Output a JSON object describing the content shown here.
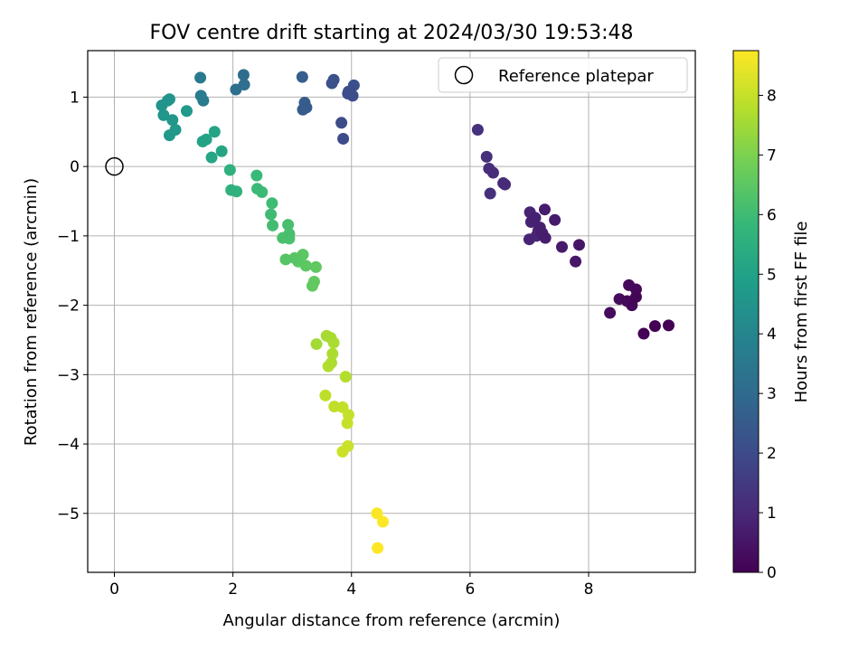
{
  "chart_data": {
    "type": "scatter",
    "title": "FOV centre drift starting at 2024/03/30 19:53:48",
    "xlabel": "Angular distance from reference (arcmin)",
    "ylabel": "Rotation from reference (arcmin)",
    "xlim": [
      -0.45,
      9.8
    ],
    "ylim": [
      -5.85,
      1.67
    ],
    "xticks": [
      0,
      2,
      4,
      6,
      8
    ],
    "yticks": [
      -5,
      -4,
      -3,
      -2,
      -1,
      0,
      1
    ],
    "grid": true,
    "legend": {
      "placement": "top-right",
      "entries": [
        "Reference platepar"
      ]
    },
    "colorbar": {
      "label": "Hours from first FF file",
      "range": [
        0,
        8.75
      ],
      "ticks": [
        0,
        1,
        2,
        3,
        4,
        5,
        6,
        7,
        8
      ],
      "colormap": "viridis"
    },
    "reference_point": {
      "x": 0,
      "y": 0
    },
    "colormap_stops": [
      "#440154",
      "#482878",
      "#3e4989",
      "#31688e",
      "#26828e",
      "#1f9e89",
      "#35b779",
      "#6ece58",
      "#b5de2b",
      "#fde725"
    ],
    "series": [
      {
        "points": [
          {
            "x": 9.35,
            "y": -2.29,
            "t": 0.0
          },
          {
            "x": 9.12,
            "y": -2.3,
            "t": 0.03
          },
          {
            "x": 8.93,
            "y": -2.41,
            "t": 0.06
          },
          {
            "x": 8.8,
            "y": -1.88,
            "t": 0.09
          },
          {
            "x": 8.73,
            "y": -2.0,
            "t": 0.12
          },
          {
            "x": 8.8,
            "y": -1.77,
            "t": 0.15
          },
          {
            "x": 8.68,
            "y": -1.71,
            "t": 0.18
          },
          {
            "x": 8.65,
            "y": -1.94,
            "t": 0.21
          },
          {
            "x": 8.52,
            "y": -1.91,
            "t": 0.24
          },
          {
            "x": 8.36,
            "y": -2.11,
            "t": 0.27
          },
          {
            "x": 7.84,
            "y": -1.13,
            "t": 0.55
          },
          {
            "x": 7.78,
            "y": -1.37,
            "t": 0.58
          },
          {
            "x": 7.55,
            "y": -1.16,
            "t": 0.62
          },
          {
            "x": 7.43,
            "y": -0.77,
            "t": 0.65
          },
          {
            "x": 7.26,
            "y": -0.62,
            "t": 0.68
          },
          {
            "x": 7.27,
            "y": -1.03,
            "t": 0.71
          },
          {
            "x": 7.18,
            "y": -0.88,
            "t": 0.74
          },
          {
            "x": 7.22,
            "y": -0.96,
            "t": 0.76
          },
          {
            "x": 7.1,
            "y": -0.74,
            "t": 0.79
          },
          {
            "x": 7.03,
            "y": -0.8,
            "t": 0.82
          },
          {
            "x": 7.01,
            "y": -0.66,
            "t": 0.85
          },
          {
            "x": 7.0,
            "y": -1.05,
            "t": 0.88
          },
          {
            "x": 7.15,
            "y": -0.93,
            "t": 0.9
          },
          {
            "x": 7.12,
            "y": -1.0,
            "t": 0.92
          },
          {
            "x": 6.59,
            "y": -0.26,
            "t": 1.05
          },
          {
            "x": 6.56,
            "y": -0.24,
            "t": 1.08
          },
          {
            "x": 6.39,
            "y": -0.09,
            "t": 1.11
          },
          {
            "x": 6.32,
            "y": -0.03,
            "t": 1.14
          },
          {
            "x": 6.28,
            "y": 0.14,
            "t": 1.17
          },
          {
            "x": 6.34,
            "y": -0.39,
            "t": 1.2
          },
          {
            "x": 6.13,
            "y": 0.53,
            "t": 1.23
          },
          {
            "x": 3.86,
            "y": 0.4,
            "t": 2.0
          },
          {
            "x": 3.83,
            "y": 0.63,
            "t": 2.03
          },
          {
            "x": 4.02,
            "y": 1.02,
            "t": 2.06
          },
          {
            "x": 3.95,
            "y": 1.08,
            "t": 2.09
          },
          {
            "x": 3.94,
            "y": 1.05,
            "t": 2.12
          },
          {
            "x": 4.04,
            "y": 1.17,
            "t": 2.15
          },
          {
            "x": 3.67,
            "y": 1.2,
            "t": 2.18
          },
          {
            "x": 3.7,
            "y": 1.25,
            "t": 2.21
          },
          {
            "x": 3.24,
            "y": 0.85,
            "t": 2.5
          },
          {
            "x": 3.18,
            "y": 0.82,
            "t": 2.53
          },
          {
            "x": 3.21,
            "y": 0.92,
            "t": 2.56
          },
          {
            "x": 3.17,
            "y": 1.29,
            "t": 2.59
          },
          {
            "x": 2.18,
            "y": 1.32,
            "t": 3.1
          },
          {
            "x": 2.19,
            "y": 1.18,
            "t": 3.13
          },
          {
            "x": 2.05,
            "y": 1.11,
            "t": 3.16
          },
          {
            "x": 1.45,
            "y": 1.28,
            "t": 3.6
          },
          {
            "x": 1.46,
            "y": 1.02,
            "t": 3.63
          },
          {
            "x": 1.5,
            "y": 0.95,
            "t": 3.66
          },
          {
            "x": 0.8,
            "y": 0.88,
            "t": 4.5
          },
          {
            "x": 0.9,
            "y": 0.95,
            "t": 4.53
          },
          {
            "x": 0.93,
            "y": 0.97,
            "t": 4.56
          },
          {
            "x": 0.83,
            "y": 0.74,
            "t": 4.59
          },
          {
            "x": 0.98,
            "y": 0.67,
            "t": 4.62
          },
          {
            "x": 1.03,
            "y": 0.53,
            "t": 4.65
          },
          {
            "x": 0.93,
            "y": 0.45,
            "t": 4.68
          },
          {
            "x": 1.22,
            "y": 0.8,
            "t": 4.72
          },
          {
            "x": 1.49,
            "y": 0.36,
            "t": 5.05
          },
          {
            "x": 1.55,
            "y": 0.39,
            "t": 5.08
          },
          {
            "x": 1.69,
            "y": 0.5,
            "t": 5.11
          },
          {
            "x": 1.81,
            "y": 0.22,
            "t": 5.14
          },
          {
            "x": 1.64,
            "y": 0.13,
            "t": 5.17
          },
          {
            "x": 1.95,
            "y": -0.05,
            "t": 5.55
          },
          {
            "x": 1.97,
            "y": -0.34,
            "t": 5.58
          },
          {
            "x": 2.06,
            "y": -0.36,
            "t": 5.61
          },
          {
            "x": 2.4,
            "y": -0.13,
            "t": 5.9
          },
          {
            "x": 2.41,
            "y": -0.32,
            "t": 5.93
          },
          {
            "x": 2.49,
            "y": -0.37,
            "t": 5.96
          },
          {
            "x": 2.66,
            "y": -0.53,
            "t": 5.99
          },
          {
            "x": 2.64,
            "y": -0.69,
            "t": 6.02
          },
          {
            "x": 2.67,
            "y": -0.85,
            "t": 6.05
          },
          {
            "x": 2.93,
            "y": -0.84,
            "t": 6.15
          },
          {
            "x": 2.95,
            "y": -0.97,
            "t": 6.18
          },
          {
            "x": 2.84,
            "y": -1.03,
            "t": 6.21
          },
          {
            "x": 2.95,
            "y": -1.04,
            "t": 6.24
          },
          {
            "x": 2.89,
            "y": -1.34,
            "t": 6.4
          },
          {
            "x": 3.04,
            "y": -1.32,
            "t": 6.43
          },
          {
            "x": 3.18,
            "y": -1.27,
            "t": 6.46
          },
          {
            "x": 3.1,
            "y": -1.37,
            "t": 6.49
          },
          {
            "x": 3.23,
            "y": -1.43,
            "t": 6.52
          },
          {
            "x": 3.4,
            "y": -1.45,
            "t": 6.55
          },
          {
            "x": 3.37,
            "y": -1.66,
            "t": 6.58
          },
          {
            "x": 3.34,
            "y": -1.72,
            "t": 6.61
          },
          {
            "x": 3.41,
            "y": -2.56,
            "t": 7.55
          },
          {
            "x": 3.58,
            "y": -2.44,
            "t": 7.58
          },
          {
            "x": 3.65,
            "y": -2.47,
            "t": 7.61
          },
          {
            "x": 3.7,
            "y": -2.54,
            "t": 7.64
          },
          {
            "x": 3.68,
            "y": -2.7,
            "t": 7.67
          },
          {
            "x": 3.66,
            "y": -2.83,
            "t": 7.7
          },
          {
            "x": 3.61,
            "y": -2.88,
            "t": 7.73
          },
          {
            "x": 3.9,
            "y": -3.03,
            "t": 7.76
          },
          {
            "x": 3.56,
            "y": -3.3,
            "t": 7.9
          },
          {
            "x": 3.71,
            "y": -3.46,
            "t": 7.93
          },
          {
            "x": 3.85,
            "y": -3.47,
            "t": 7.96
          },
          {
            "x": 3.95,
            "y": -3.58,
            "t": 7.99
          },
          {
            "x": 3.93,
            "y": -3.7,
            "t": 8.02
          },
          {
            "x": 3.94,
            "y": -4.03,
            "t": 8.05
          },
          {
            "x": 3.85,
            "y": -4.11,
            "t": 8.08
          },
          {
            "x": 4.43,
            "y": -5.0,
            "t": 8.7
          },
          {
            "x": 4.53,
            "y": -5.12,
            "t": 8.72
          },
          {
            "x": 4.44,
            "y": -5.5,
            "t": 8.74
          }
        ]
      }
    ]
  }
}
